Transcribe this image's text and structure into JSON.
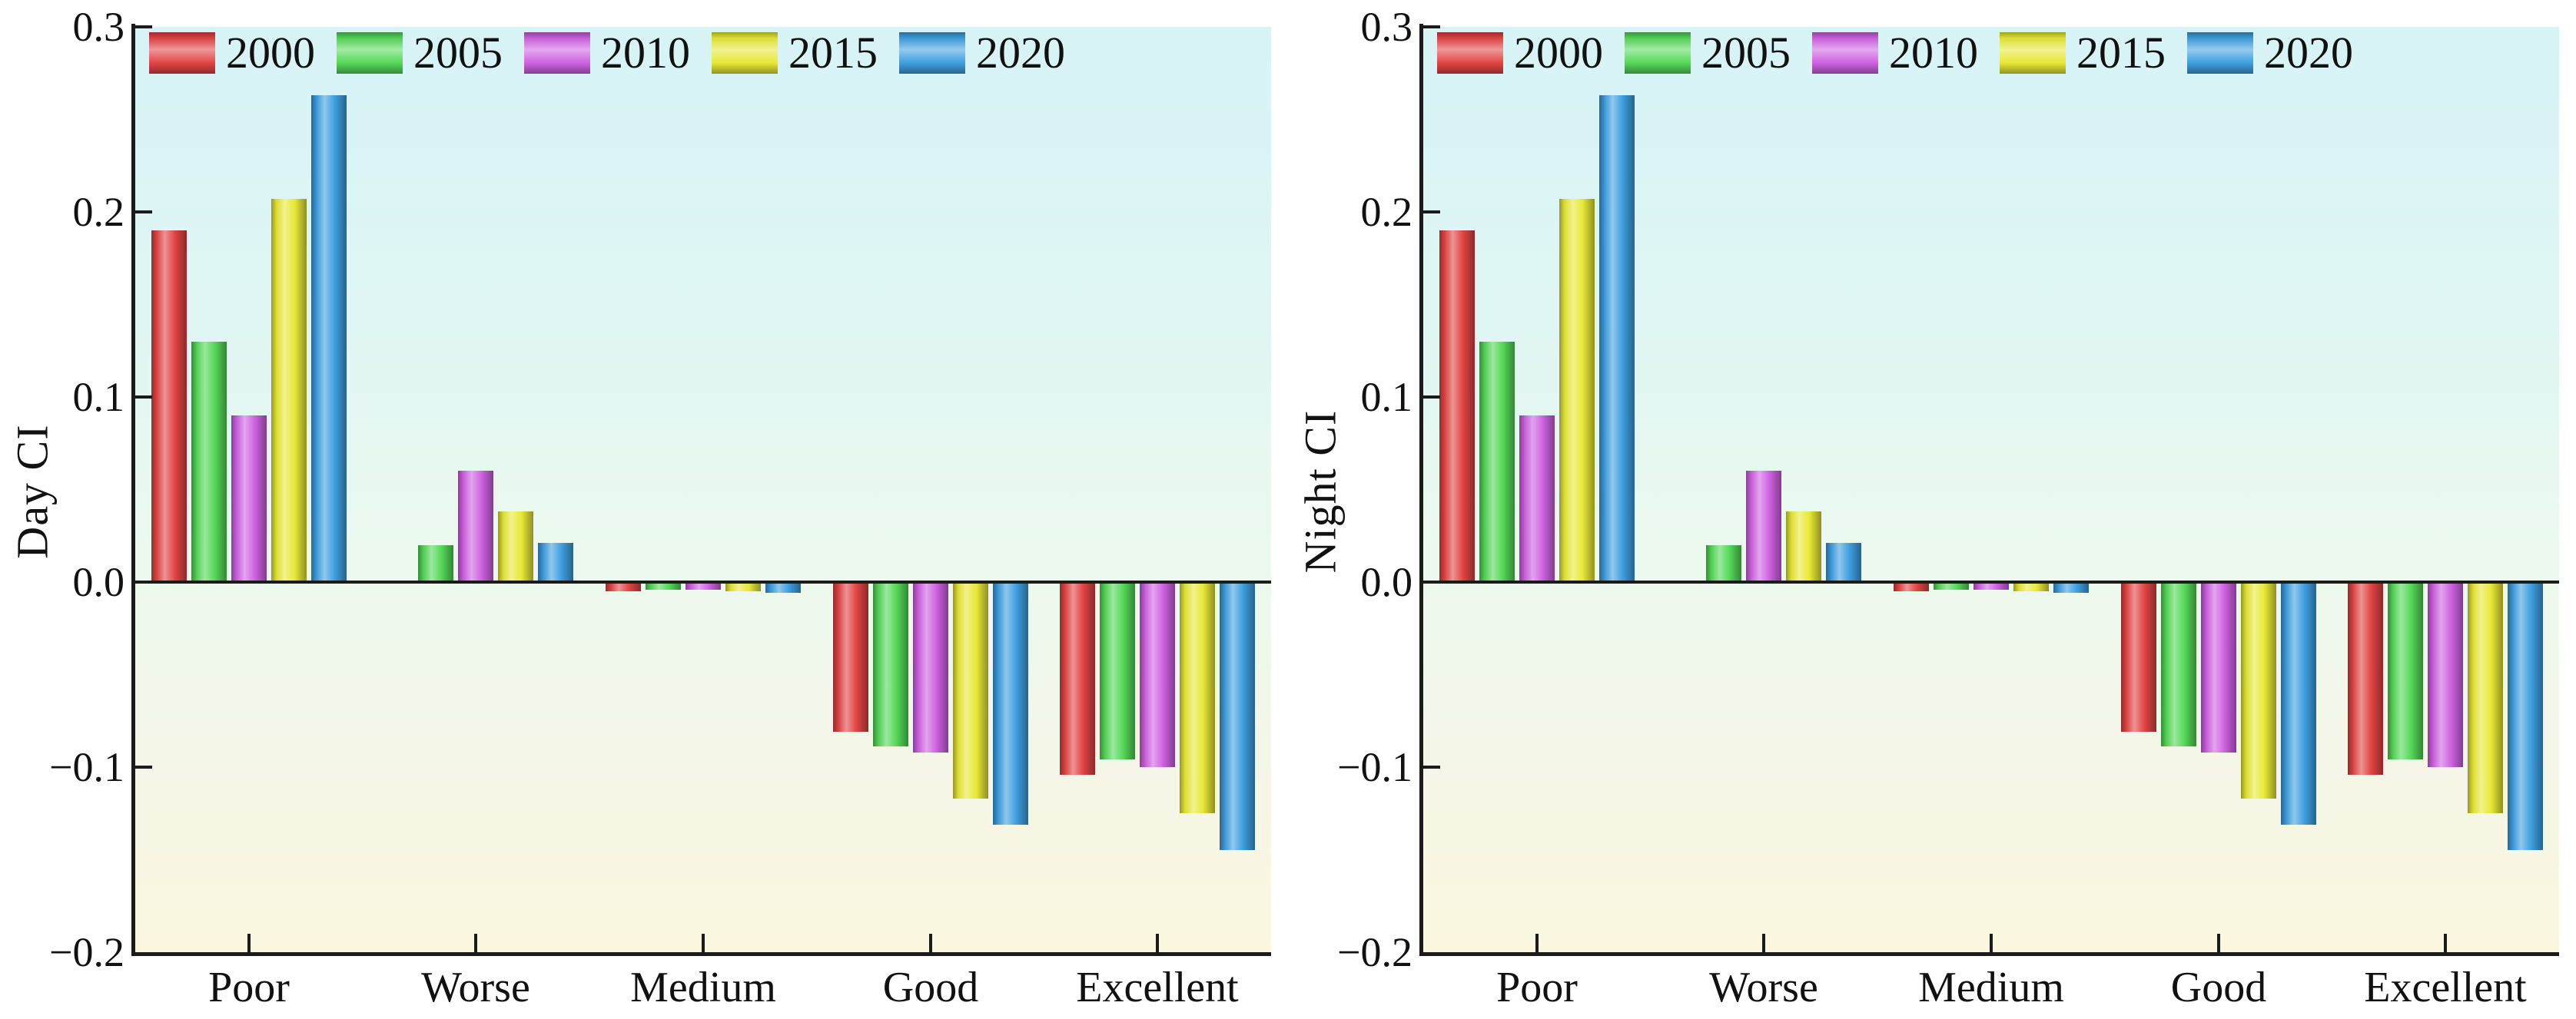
{
  "colors": {
    "axis": "#1b1b1b",
    "text": "#111111",
    "plot_bg_top": "#d7f3f6",
    "plot_bg_middle": "#ecf9ee",
    "plot_bg_bottom": "#fbf7df"
  },
  "chart_data": [
    {
      "type": "bar",
      "title": "",
      "xlabel": "",
      "ylabel": "Day CI",
      "grid": false,
      "legend_position": "top-inside-horizontal",
      "ylim": [
        -0.2,
        0.3
      ],
      "yticks": [
        {
          "v": 0.3,
          "label": "0.3"
        },
        {
          "v": 0.2,
          "label": "0.2"
        },
        {
          "v": 0.1,
          "label": "0.1"
        },
        {
          "v": 0.0,
          "label": "0.0"
        },
        {
          "v": -0.1,
          "label": "−0.1"
        },
        {
          "v": -0.2,
          "label": "−0.2"
        }
      ],
      "categories": [
        "Poor",
        "Worse",
        "Medium",
        "Good",
        "Excellent"
      ],
      "series": [
        {
          "name": "2000",
          "color": "#e24444",
          "values": [
            0.19,
            0.0,
            -0.005,
            -0.081,
            -0.104
          ]
        },
        {
          "name": "2005",
          "color": "#55d858",
          "values": [
            0.13,
            0.02,
            -0.004,
            -0.089,
            -0.096
          ]
        },
        {
          "name": "2010",
          "color": "#cf62e2",
          "values": [
            0.09,
            0.06,
            -0.004,
            -0.092,
            -0.1
          ]
        },
        {
          "name": "2015",
          "color": "#e8e838",
          "values": [
            0.207,
            0.038,
            -0.005,
            -0.117,
            -0.125
          ]
        },
        {
          "name": "2020",
          "color": "#3f9fe0",
          "values": [
            0.263,
            0.021,
            -0.006,
            -0.131,
            -0.145
          ]
        }
      ]
    },
    {
      "type": "bar",
      "title": "",
      "xlabel": "",
      "ylabel": "Night CI",
      "grid": false,
      "legend_position": "top-inside-horizontal",
      "ylim": [
        -0.2,
        0.3
      ],
      "yticks": [
        {
          "v": 0.3,
          "label": "0.3"
        },
        {
          "v": 0.2,
          "label": "0.2"
        },
        {
          "v": 0.1,
          "label": "0.1"
        },
        {
          "v": 0.0,
          "label": "0.0"
        },
        {
          "v": -0.1,
          "label": "−0.1"
        },
        {
          "v": -0.2,
          "label": "−0.2"
        }
      ],
      "categories": [
        "Poor",
        "Worse",
        "Medium",
        "Good",
        "Excellent"
      ],
      "series": [
        {
          "name": "2000",
          "color": "#e24444",
          "values": [
            0.19,
            0.0,
            -0.005,
            -0.081,
            -0.104
          ]
        },
        {
          "name": "2005",
          "color": "#55d858",
          "values": [
            0.13,
            0.02,
            -0.004,
            -0.089,
            -0.096
          ]
        },
        {
          "name": "2010",
          "color": "#cf62e2",
          "values": [
            0.09,
            0.06,
            -0.004,
            -0.092,
            -0.1
          ]
        },
        {
          "name": "2015",
          "color": "#e8e838",
          "values": [
            0.207,
            0.038,
            -0.005,
            -0.117,
            -0.125
          ]
        },
        {
          "name": "2020",
          "color": "#3f9fe0",
          "values": [
            0.263,
            0.021,
            -0.006,
            -0.131,
            -0.145
          ]
        }
      ]
    }
  ]
}
